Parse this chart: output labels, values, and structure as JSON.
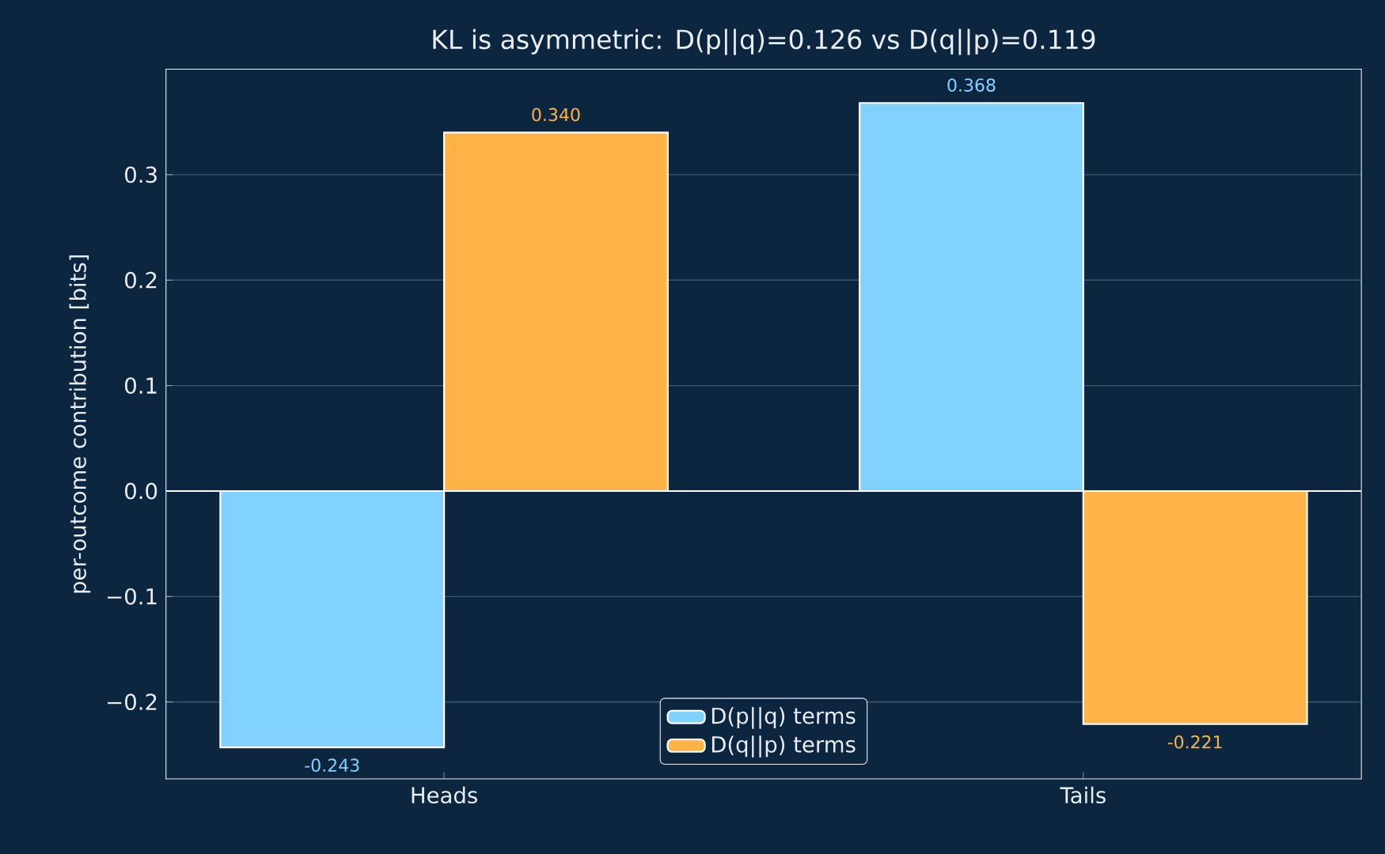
{
  "chart_data": {
    "type": "bar",
    "title": "KL is asymmetric:  D(p||q)=0.126  vs  D(q||p)=0.119",
    "ylabel": "per-outcome contribution  [bits]",
    "categories": [
      "Heads",
      "Tails"
    ],
    "series": [
      {
        "name": "D(p||q) terms",
        "color": "#82d2ff",
        "values": [
          -0.243,
          0.368
        ],
        "value_labels": [
          "-0.243",
          "0.368"
        ]
      },
      {
        "name": "D(q||p) terms",
        "color": "#ffb347",
        "values": [
          0.34,
          -0.221
        ],
        "value_labels": [
          "0.340",
          "-0.221"
        ]
      }
    ],
    "ylim": [
      -0.273,
      0.4
    ],
    "yticks": [
      {
        "value": -0.2,
        "label": "−0.2"
      },
      {
        "value": -0.1,
        "label": "−0.1"
      },
      {
        "value": 0,
        "label": "0.0"
      },
      {
        "value": 0.1,
        "label": "0.1"
      },
      {
        "value": 0.2,
        "label": "0.2"
      },
      {
        "value": 0.3,
        "label": "0.3"
      }
    ],
    "ref_lines": [
      {
        "axis": "y",
        "value": 0,
        "color": "#ffffff"
      }
    ],
    "grid": "y",
    "legend": "bottom"
  }
}
